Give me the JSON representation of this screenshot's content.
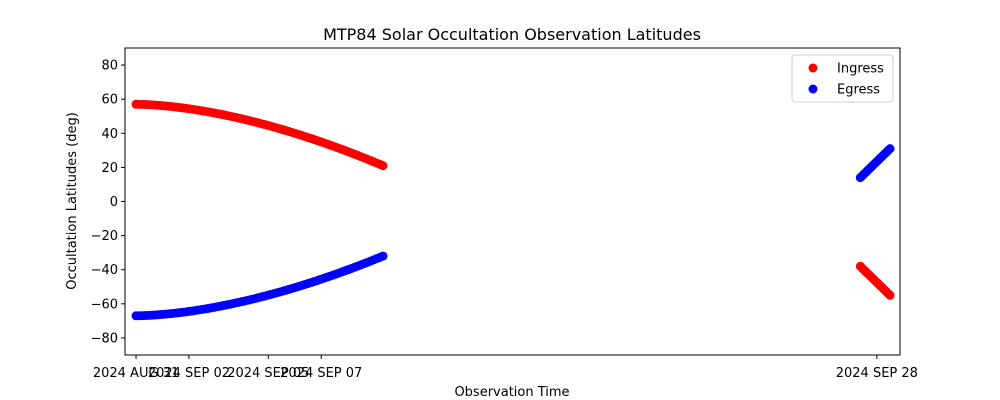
{
  "chart_data": {
    "type": "scatter",
    "title": "MTP84 Solar Occultation Observation Latitudes",
    "xlabel": "Observation Time",
    "ylabel": "Occultation Latitudes (deg)",
    "ylim": [
      -90,
      90
    ],
    "yticks": [
      -80,
      -60,
      -40,
      -20,
      0,
      20,
      40,
      60,
      80
    ],
    "xlim": [
      "2024-08-30T14:00",
      "2024-09-28T21:00"
    ],
    "xticks": [
      {
        "date": "2024-08-31",
        "label": "2024 AUG 31"
      },
      {
        "date": "2024-09-02",
        "label": "2024 SEP 02"
      },
      {
        "date": "2024-09-05",
        "label": "2024 SEP 05"
      },
      {
        "date": "2024-09-07",
        "label": "2024 SEP 07"
      },
      {
        "date": "2024-09-28",
        "label": "2024 SEP 28"
      }
    ],
    "legend_position": "top-right",
    "series": [
      {
        "name": "Ingress",
        "color": "#ff0000",
        "segments": [
          {
            "start": "2024-08-31T00:00",
            "end": "2024-09-09T08:00",
            "start_lat": 57,
            "end_lat": 21,
            "shape": "concave",
            "points": 80
          },
          {
            "start": "2024-09-27T09:00",
            "end": "2024-09-28T12:00",
            "start_lat": -38,
            "end_lat": -55,
            "shape": "linear",
            "points": 18
          }
        ]
      },
      {
        "name": "Egress",
        "color": "#0000ff",
        "segments": [
          {
            "start": "2024-08-31T00:00",
            "end": "2024-09-09T08:00",
            "start_lat": -67,
            "end_lat": -32,
            "shape": "convex",
            "points": 80
          },
          {
            "start": "2024-09-27T09:00",
            "end": "2024-09-28T12:00",
            "start_lat": 14,
            "end_lat": 31,
            "shape": "linear",
            "points": 18
          }
        ]
      }
    ]
  }
}
